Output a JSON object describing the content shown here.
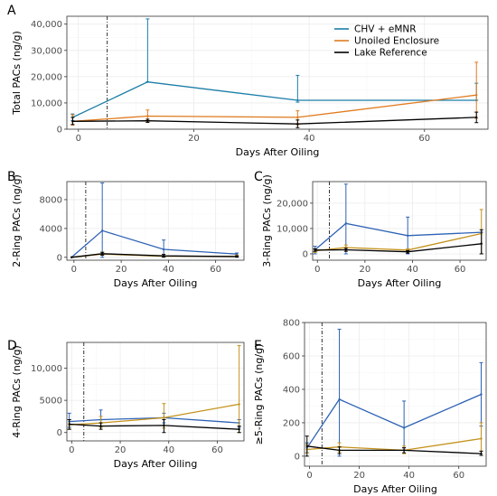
{
  "chart_data": [
    {
      "panel": "A",
      "type": "line",
      "xlabel": "Days After Oiling",
      "ylabel": "Total PACs (ng/g)",
      "xlim": [
        -2,
        71
      ],
      "ylim": [
        0,
        43000
      ],
      "xticks": [
        0,
        20,
        40,
        60
      ],
      "yticks": [
        0,
        10000,
        20000,
        30000,
        40000
      ],
      "ytick_labels": [
        "0",
        "10,000",
        "20,000",
        "30,000",
        "40,000"
      ],
      "oiling_day": 5,
      "legend": "top-right",
      "series": [
        {
          "name": "CHV + eMNR",
          "color": "#1b7da8",
          "x": [
            -1,
            12,
            38,
            69
          ],
          "y": [
            4500,
            18000,
            11000,
            11000
          ],
          "err_lo": [
            3300,
            18000,
            10300,
            11000
          ],
          "err_hi": [
            5800,
            42000,
            20500,
            17500
          ]
        },
        {
          "name": "Unoiled Enclosure",
          "color": "#e07b1f",
          "x": [
            -1,
            12,
            38,
            69
          ],
          "y": [
            3000,
            5000,
            4500,
            13000
          ],
          "err_lo": [
            1500,
            3000,
            1700,
            4200
          ],
          "err_hi": [
            5500,
            7300,
            7000,
            25500
          ]
        },
        {
          "name": "Lake Reference",
          "color": "#000000",
          "x": [
            -1,
            12,
            38,
            69
          ],
          "y": [
            3000,
            3200,
            2000,
            4500
          ],
          "err_lo": [
            1800,
            2600,
            600,
            2500
          ],
          "err_hi": [
            4500,
            3800,
            3500,
            6500
          ]
        }
      ]
    },
    {
      "panel": "B",
      "type": "line",
      "xlabel": "Days After Oiling",
      "ylabel": "2-Ring PACs (ng/g)",
      "xlim": [
        -3,
        72
      ],
      "ylim": [
        -400,
        10500
      ],
      "xticks": [
        0,
        20,
        40,
        60
      ],
      "yticks": [
        0,
        4000,
        8000
      ],
      "ytick_labels": [
        "0",
        "4000",
        "8000"
      ],
      "oiling_day": 5,
      "series": [
        {
          "name": "CHV + eMNR",
          "color": "#2e62b5",
          "x": [
            -1,
            12,
            38,
            69
          ],
          "y": [
            0,
            3700,
            1100,
            450
          ],
          "err_lo": [
            0,
            0,
            0,
            0
          ],
          "err_hi": [
            0,
            10300,
            2400,
            600
          ]
        },
        {
          "name": "Unoiled Enclosure",
          "color": "#c4921c",
          "x": [
            -1,
            12,
            38,
            69
          ],
          "y": [
            0,
            450,
            150,
            150
          ],
          "err_lo": [
            0,
            300,
            50,
            50
          ],
          "err_hi": [
            0,
            700,
            400,
            300
          ]
        },
        {
          "name": "Lake Reference",
          "color": "#000000",
          "x": [
            -1,
            12,
            38,
            69
          ],
          "y": [
            0,
            500,
            200,
            100
          ],
          "err_lo": [
            0,
            300,
            50,
            50
          ],
          "err_hi": [
            0,
            700,
            400,
            200
          ]
        }
      ]
    },
    {
      "panel": "C",
      "type": "line",
      "xlabel": "Days After Oiling",
      "ylabel": "3-Ring PACs (ng/g)",
      "xlim": [
        -2,
        71
      ],
      "ylim": [
        -2500,
        28500
      ],
      "xticks": [
        0,
        20,
        40,
        60
      ],
      "yticks": [
        0,
        10000,
        20000
      ],
      "ytick_labels": [
        "0",
        "10,000",
        "20,000"
      ],
      "oiling_day": 5,
      "series": [
        {
          "name": "CHV + eMNR",
          "color": "#2e62b5",
          "x": [
            -1,
            12,
            38,
            69
          ],
          "y": [
            1600,
            12000,
            7200,
            8500
          ],
          "err_lo": [
            0,
            0,
            0,
            0
          ],
          "err_hi": [
            3000,
            27500,
            14500,
            8500
          ]
        },
        {
          "name": "Unoiled Enclosure",
          "color": "#c4921c",
          "x": [
            -1,
            12,
            38,
            69
          ],
          "y": [
            1200,
            2500,
            1500,
            8000
          ],
          "err_lo": [
            600,
            1500,
            1000,
            0
          ],
          "err_hi": [
            2000,
            3500,
            2000,
            17500
          ]
        },
        {
          "name": "Lake Reference",
          "color": "#000000",
          "x": [
            -1,
            12,
            38,
            69
          ],
          "y": [
            1500,
            1600,
            800,
            4000
          ],
          "err_lo": [
            1000,
            1000,
            300,
            0
          ],
          "err_hi": [
            2000,
            2200,
            1300,
            9500
          ]
        }
      ]
    },
    {
      "panel": "D",
      "type": "line",
      "xlabel": "Days After Oiling",
      "ylabel": "4-Ring PACs (ng/g)",
      "xlim": [
        -2,
        71
      ],
      "ylim": [
        -1300,
        14000
      ],
      "xticks": [
        0,
        20,
        40,
        60
      ],
      "yticks": [
        0,
        5000,
        10000
      ],
      "ytick_labels": [
        "0",
        "5000",
        "10,000"
      ],
      "oiling_day": 5,
      "series": [
        {
          "name": "CHV + eMNR",
          "color": "#2e62b5",
          "x": [
            -1,
            12,
            38,
            69
          ],
          "y": [
            1700,
            2000,
            2300,
            1500
          ],
          "err_lo": [
            800,
            1000,
            1500,
            800
          ],
          "err_hi": [
            3000,
            3500,
            3000,
            2000
          ]
        },
        {
          "name": "Unoiled Enclosure",
          "color": "#c4921c",
          "x": [
            -1,
            12,
            38,
            69
          ],
          "y": [
            1200,
            1500,
            2300,
            4400
          ],
          "err_lo": [
            500,
            800,
            700,
            0
          ],
          "err_hi": [
            2000,
            2500,
            4500,
            13500
          ]
        },
        {
          "name": "Lake Reference",
          "color": "#000000",
          "x": [
            -1,
            12,
            38,
            69
          ],
          "y": [
            1300,
            1000,
            1100,
            500
          ],
          "err_lo": [
            500,
            500,
            0,
            0
          ],
          "err_hi": [
            2000,
            1500,
            2000,
            1000
          ]
        }
      ]
    },
    {
      "panel": "E",
      "type": "line",
      "xlabel": "Days After Oiling",
      "ylabel": "≥5-Ring PACs (ng/g)",
      "xlim": [
        -2,
        71
      ],
      "ylim": [
        -60,
        800
      ],
      "xticks": [
        0,
        20,
        40,
        60
      ],
      "yticks": [
        0,
        200,
        400,
        600,
        800
      ],
      "ytick_labels": [
        "0",
        "200",
        "400",
        "600",
        "800"
      ],
      "oiling_day": 5,
      "series": [
        {
          "name": "CHV + eMNR",
          "color": "#2e62b5",
          "x": [
            -1,
            12,
            38,
            69
          ],
          "y": [
            50,
            340,
            170,
            370
          ],
          "err_lo": [
            20,
            0,
            50,
            180
          ],
          "err_hi": [
            80,
            760,
            330,
            560
          ]
        },
        {
          "name": "Unoiled Enclosure",
          "color": "#c4921c",
          "x": [
            -1,
            12,
            38,
            69
          ],
          "y": [
            40,
            55,
            35,
            105
          ],
          "err_lo": [
            20,
            25,
            15,
            30
          ],
          "err_hi": [
            70,
            80,
            60,
            200
          ]
        },
        {
          "name": "Lake Reference",
          "color": "#000000",
          "x": [
            -1,
            12,
            38,
            69
          ],
          "y": [
            60,
            35,
            35,
            15
          ],
          "err_lo": [
            0,
            15,
            20,
            5
          ],
          "err_hi": [
            120,
            55,
            50,
            30
          ]
        }
      ]
    }
  ]
}
